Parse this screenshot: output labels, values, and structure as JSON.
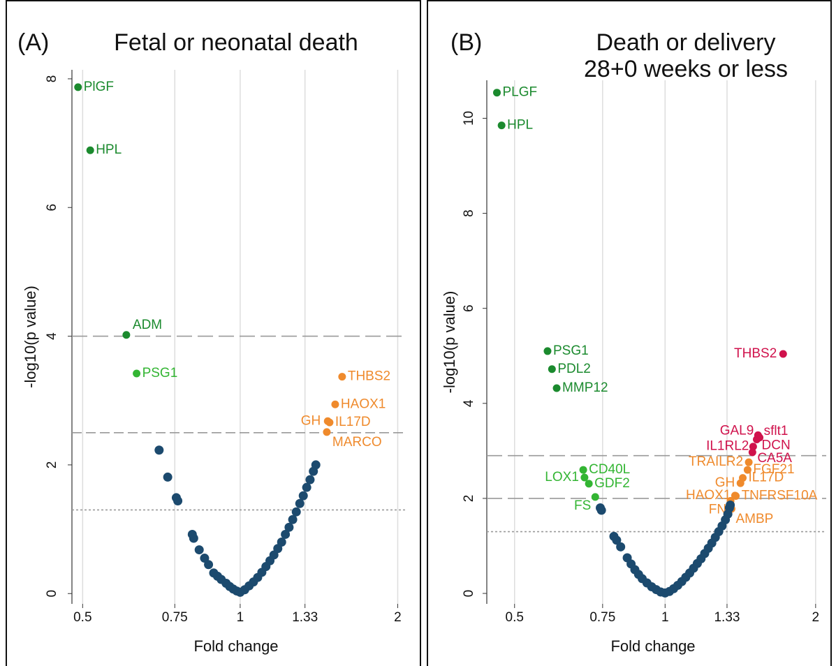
{
  "chart_data": [
    {
      "type": "scatter",
      "panel_label": "(A)",
      "title": [
        "Fetal or neonatal death"
      ],
      "xlabel": "Fold change",
      "ylabel": "-log10(p value)",
      "log_x": true,
      "grid": "x",
      "xlim": [
        0.477,
        2.085
      ],
      "ylim": [
        -0.16,
        8.14
      ],
      "xticks": [
        0.5,
        0.75,
        1,
        1.33,
        2
      ],
      "yticks": [
        0,
        2,
        4,
        6,
        8
      ],
      "reference_lines": [
        {
          "value": 4,
          "style": "long-dash"
        },
        {
          "value": 2.5,
          "style": "dash"
        },
        {
          "value": 1.3,
          "style": "dot"
        }
      ],
      "series": [
        {
          "color": "#1b8a2e",
          "labels": [
            "PlGF",
            "HPL",
            "ADM"
          ],
          "x": [
            0.49,
            0.517,
            0.606
          ],
          "values": [
            7.87,
            6.89,
            4.02
          ]
        },
        {
          "color": "#33b533",
          "labels": [
            "PSG1"
          ],
          "x": [
            0.634
          ],
          "values": [
            3.42
          ]
        },
        {
          "color": "#ef8a2c",
          "labels": [
            "THBS2",
            "HAOX1",
            "GH",
            "IL17D",
            "MARCO"
          ],
          "x": [
            1.566,
            1.519,
            1.47,
            1.482,
            1.464
          ],
          "values": [
            3.37,
            2.94,
            2.68,
            2.66,
            2.51
          ]
        },
        {
          "color": "#1c4a6e",
          "x": [
            0.7,
            0.727,
            0.755,
            0.76,
            0.81,
            0.815,
            0.835,
            0.855,
            0.87,
            0.89,
            0.905,
            0.92,
            0.94,
            0.955,
            0.97,
            0.985,
            1.0,
            1.02,
            1.04,
            1.06,
            1.08,
            1.1,
            1.12,
            1.14,
            1.16,
            1.18,
            1.2,
            1.22,
            1.24,
            1.26,
            1.28,
            1.3,
            1.32,
            1.34,
            1.36,
            1.38,
            1.395
          ],
          "values": [
            2.23,
            1.81,
            1.49,
            1.44,
            0.92,
            0.86,
            0.68,
            0.55,
            0.45,
            0.32,
            0.27,
            0.22,
            0.16,
            0.11,
            0.07,
            0.04,
            0.02,
            0.06,
            0.12,
            0.18,
            0.25,
            0.33,
            0.42,
            0.51,
            0.6,
            0.7,
            0.8,
            0.92,
            1.03,
            1.15,
            1.27,
            1.4,
            1.52,
            1.65,
            1.77,
            1.9,
            2.0
          ]
        }
      ]
    },
    {
      "type": "scatter",
      "panel_label": "(B)",
      "title": [
        "Death or delivery",
        "28+0 weeks or less"
      ],
      "xlabel": "Fold change",
      "ylabel": "-log10(p value)",
      "log_x": true,
      "grid": "x",
      "xlim": [
        0.44,
        2.1
      ],
      "ylim": [
        -0.22,
        10.8
      ],
      "xticks": [
        0.5,
        0.75,
        1,
        1.33,
        2
      ],
      "yticks": [
        0,
        2,
        4,
        6,
        8,
        10
      ],
      "reference_lines": [
        {
          "value": 2.9,
          "style": "long-dash"
        },
        {
          "value": 2,
          "style": "long-dash"
        },
        {
          "value": 1.3,
          "style": "dot"
        }
      ],
      "series": [
        {
          "color": "#1b8a2e",
          "labels": [
            "PLGF",
            "HPL",
            "PSG1",
            "PDL2",
            "MMP12"
          ],
          "x": [
            0.461,
            0.471,
            0.582,
            0.594,
            0.607
          ],
          "values": [
            10.54,
            9.85,
            5.1,
            4.72,
            4.32
          ]
        },
        {
          "color": "#33b533",
          "labels": [
            "CD40L",
            "LOX1",
            "GDF2",
            "FS"
          ],
          "x": [
            0.686,
            0.69,
            0.704,
            0.725
          ],
          "values": [
            2.6,
            2.44,
            2.31,
            2.03
          ]
        },
        {
          "color": "#ef8a2c",
          "labels": [
            "TRAILR2",
            "FGF21",
            "GH",
            "IL17D",
            "HAOX1",
            "TNFRSF10A",
            "FN",
            "AMBP"
          ],
          "x": [
            1.47,
            1.462,
            1.415,
            1.43,
            1.38,
            1.385,
            1.352,
            1.358
          ],
          "values": [
            2.76,
            2.6,
            2.32,
            2.43,
            2.06,
            2.05,
            1.95,
            1.78
          ]
        },
        {
          "color": "#d0124c",
          "labels": [
            "THBS2",
            "sflt1",
            "GAL9",
            "DCN",
            "IL1RL2",
            "CA5A"
          ],
          "x": [
            1.722,
            1.545,
            1.534,
            1.525,
            1.5,
            1.495
          ],
          "values": [
            5.04,
            3.28,
            3.33,
            3.24,
            3.09,
            2.97
          ]
        },
        {
          "color": "#1c4a6e",
          "x": [
            0.742,
            0.746,
            0.79,
            0.8,
            0.815,
            0.84,
            0.855,
            0.87,
            0.885,
            0.9,
            0.92,
            0.94,
            0.96,
            0.98,
            1.0,
            1.02,
            1.04,
            1.06,
            1.08,
            1.1,
            1.12,
            1.14,
            1.16,
            1.18,
            1.2,
            1.22,
            1.24,
            1.26,
            1.28,
            1.3,
            1.32,
            1.335,
            1.345,
            1.35
          ],
          "values": [
            1.8,
            1.75,
            1.2,
            1.12,
            0.98,
            0.75,
            0.62,
            0.5,
            0.4,
            0.31,
            0.22,
            0.14,
            0.08,
            0.03,
            0.01,
            0.04,
            0.1,
            0.17,
            0.25,
            0.34,
            0.43,
            0.53,
            0.63,
            0.73,
            0.84,
            0.95,
            1.06,
            1.18,
            1.3,
            1.42,
            1.55,
            1.67,
            1.8,
            1.86
          ]
        }
      ]
    }
  ]
}
